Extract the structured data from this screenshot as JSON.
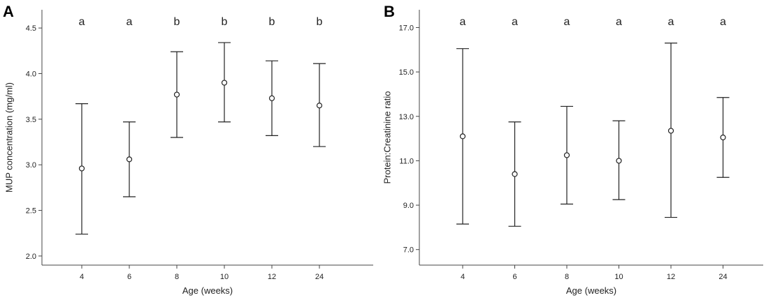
{
  "chart_data": [
    {
      "panel": "A",
      "type": "scatter",
      "title": "",
      "xlabel": "Age (weeks)",
      "ylabel": "MUP concentration (mg/ml)",
      "ylim": [
        1.9,
        4.7
      ],
      "yticks": [
        "2.0",
        "2.5",
        "3.0",
        "3.5",
        "4.0",
        "4.5"
      ],
      "categories": [
        "4",
        "6",
        "8",
        "10",
        "12",
        "24"
      ],
      "mean": [
        2.96,
        3.06,
        3.77,
        3.9,
        3.73,
        3.65
      ],
      "lower": [
        2.24,
        2.65,
        3.3,
        3.47,
        3.32,
        3.2
      ],
      "upper": [
        3.67,
        3.47,
        4.24,
        4.34,
        4.14,
        4.11
      ],
      "letters": [
        "a",
        "a",
        "b",
        "b",
        "b",
        "b"
      ],
      "grid": false
    },
    {
      "panel": "B",
      "type": "scatter",
      "title": "",
      "xlabel": "Age (weeks)",
      "ylabel": "Protein:Creatinine ratio",
      "ylim": [
        6.3,
        17.8
      ],
      "yticks": [
        "7.0",
        "9.0",
        "11.0",
        "13.0",
        "15.0",
        "17.0"
      ],
      "categories": [
        "4",
        "6",
        "8",
        "10",
        "12",
        "24"
      ],
      "mean": [
        12.1,
        10.4,
        11.25,
        11.0,
        12.35,
        12.05
      ],
      "lower": [
        8.15,
        8.05,
        9.05,
        9.25,
        8.45,
        10.25
      ],
      "upper": [
        16.05,
        12.75,
        13.45,
        12.8,
        16.3,
        13.85
      ],
      "letters": [
        "a",
        "a",
        "a",
        "a",
        "a",
        "a"
      ],
      "grid": false
    }
  ]
}
